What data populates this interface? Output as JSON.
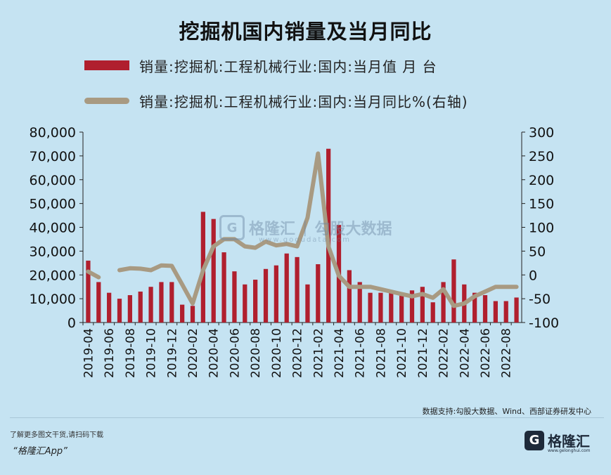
{
  "title": "挖掘机国内销量及当月同比",
  "legend": {
    "bar_label": "销量:挖掘机:工程机械行业:国内:当月值 月 台",
    "line_label": "销量:挖掘机:工程机械行业:国内:当月同比%(右轴)"
  },
  "colors": {
    "bar": "#b01f2e",
    "line": "#a89a82",
    "background": "#c5e3f2"
  },
  "watermark": {
    "logo_glyph": "G",
    "name": "格隆汇",
    "separator": "|",
    "partner": "勾股大数据",
    "url": "www.gogudata.com"
  },
  "source": "数据支持:勾股大数据、Wind、西部证券研发中心",
  "footer": {
    "note": "了解更多图文干货,请扫码下载",
    "app": "“格隆汇App”"
  },
  "brand": {
    "logo_glyph": "G",
    "name": "格隆汇",
    "url": "www.gelonghui.com"
  },
  "chart_data": {
    "type": "bar+line",
    "title": "挖掘机国内销量及当月同比",
    "x": [
      "2019-04",
      "2019-05",
      "2019-06",
      "2019-07",
      "2019-08",
      "2019-09",
      "2019-10",
      "2019-11",
      "2019-12",
      "2020-01",
      "2020-02",
      "2020-03",
      "2020-04",
      "2020-05",
      "2020-06",
      "2020-07",
      "2020-08",
      "2020-09",
      "2020-10",
      "2020-11",
      "2020-12",
      "2021-01",
      "2021-02",
      "2021-03",
      "2021-04",
      "2021-05",
      "2021-06",
      "2021-07",
      "2021-08",
      "2021-09",
      "2021-10",
      "2021-11",
      "2021-12",
      "2022-01",
      "2022-02",
      "2022-03",
      "2022-04",
      "2022-05",
      "2022-06",
      "2022-07",
      "2022-08",
      "2022-09"
    ],
    "x_tick_labels": [
      "2019-04",
      "2019-06",
      "2019-08",
      "2019-10",
      "2019-12",
      "2020-02",
      "2020-04",
      "2020-06",
      "2020-08",
      "2020-10",
      "2020-12",
      "2021-02",
      "2021-04",
      "2021-06",
      "2021-08",
      "2021-10",
      "2021-12",
      "2022-02",
      "2022-04",
      "2022-06",
      "2022-08"
    ],
    "series": [
      {
        "name": "销量:挖掘机:工程机械行业:国内:当月值 月 台",
        "kind": "bar",
        "axis": "left",
        "values": [
          26000,
          17000,
          12500,
          10000,
          11500,
          13000,
          15000,
          17000,
          17000,
          7500,
          7000,
          46500,
          43500,
          29500,
          21500,
          16000,
          18000,
          22500,
          24000,
          29000,
          27500,
          16000,
          24500,
          73000,
          41000,
          22000,
          17000,
          12500,
          12500,
          13500,
          12500,
          13500,
          15000,
          8500,
          17000,
          26500,
          16000,
          12500,
          11500,
          9000,
          9000,
          10500
        ]
      },
      {
        "name": "销量:挖掘机:工程机械行业:国内:当月同比%(右轴)",
        "kind": "line",
        "axis": "right",
        "values": [
          7,
          -5,
          null,
          10,
          14,
          13,
          10,
          20,
          19,
          -20,
          -60,
          10,
          60,
          75,
          75,
          60,
          57,
          70,
          62,
          65,
          60,
          120,
          255,
          60,
          -2,
          -25,
          -25,
          -25,
          -30,
          -35,
          -40,
          -45,
          -40,
          -48,
          -30,
          -65,
          -60,
          -45,
          -35,
          -25,
          -25,
          -25
        ]
      }
    ],
    "y_left": {
      "min": 0,
      "max": 80000,
      "ticks": [
        0,
        10000,
        20000,
        30000,
        40000,
        50000,
        60000,
        70000,
        80000
      ],
      "tick_labels": [
        "0",
        "10,000",
        "20,000",
        "30,000",
        "40,000",
        "50,000",
        "60,000",
        "70,000",
        "80,000"
      ]
    },
    "y_right": {
      "min": -100,
      "max": 300,
      "ticks": [
        -100,
        -50,
        0,
        50,
        100,
        150,
        200,
        250,
        300
      ],
      "tick_labels": [
        "-100",
        "-50",
        "0",
        "50",
        "100",
        "150",
        "200",
        "250",
        "300"
      ]
    },
    "grid": false,
    "legend_position": "top"
  }
}
